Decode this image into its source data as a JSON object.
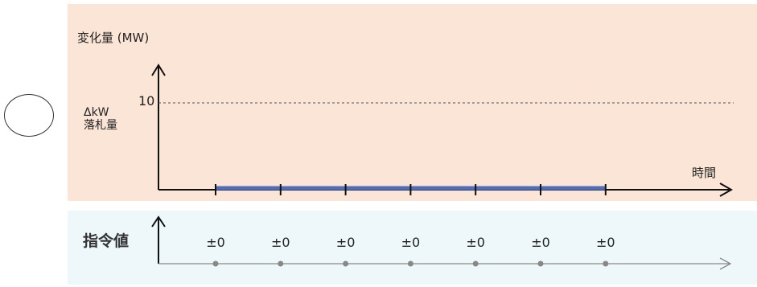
{
  "colors": {
    "upper_panel_bg": "#fbe5d6",
    "lower_panel_bg": "#eef8fb",
    "axis": "#111111",
    "change_line": "#4f6db8",
    "command_axis": "#888888"
  },
  "symbol": "circle",
  "upper": {
    "y_axis_title": "変化量 (MW)",
    "dkw_label": "ΔkW\n落札量",
    "dkw_value": "10",
    "x_axis_title": "時間",
    "tick_count": 7
  },
  "lower": {
    "title": "指令値",
    "values": [
      "±0",
      "±0",
      "±0",
      "±0",
      "±0",
      "±0",
      "±0"
    ]
  }
}
